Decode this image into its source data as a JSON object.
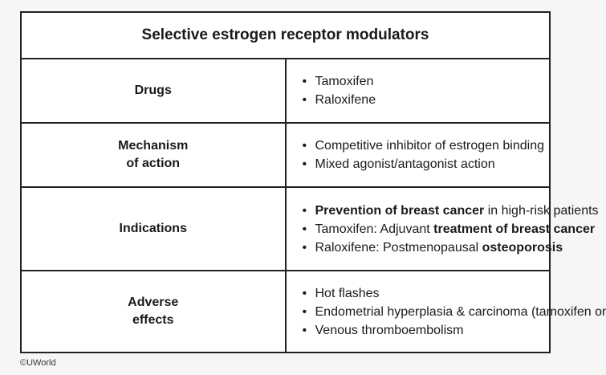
{
  "table": {
    "title": "Selective estrogen receptor modulators",
    "rows": [
      {
        "label_lines": [
          "Drugs"
        ],
        "items": [
          [
            {
              "t": "Tamoxifen",
              "b": false
            }
          ],
          [
            {
              "t": "Raloxifene",
              "b": false
            }
          ]
        ]
      },
      {
        "label_lines": [
          "Mechanism",
          "of action"
        ],
        "items": [
          [
            {
              "t": "Competitive inhibitor of estrogen binding",
              "b": false
            }
          ],
          [
            {
              "t": "Mixed agonist/antagonist action",
              "b": false
            }
          ]
        ]
      },
      {
        "label_lines": [
          "Indications"
        ],
        "items": [
          [
            {
              "t": "Prevention of breast cancer",
              "b": true
            },
            {
              "t": " in high-risk patients",
              "b": false
            }
          ],
          [
            {
              "t": "Tamoxifen: Adjuvant ",
              "b": false
            },
            {
              "t": "treatment of breast cancer",
              "b": true
            }
          ],
          [
            {
              "t": "Raloxifene: Postmenopausal ",
              "b": false
            },
            {
              "t": "osteoporosis",
              "b": true
            }
          ]
        ]
      },
      {
        "label_lines": [
          "Adverse",
          "effects"
        ],
        "items": [
          [
            {
              "t": "Hot flashes",
              "b": false
            }
          ],
          [
            {
              "t": "Endometrial hyperplasia & carcinoma (tamoxifen only)",
              "b": false
            }
          ],
          [
            {
              "t": "Venous thromboembolism",
              "b": false
            }
          ]
        ]
      }
    ]
  },
  "footer": {
    "copyright": "©UWorld"
  }
}
